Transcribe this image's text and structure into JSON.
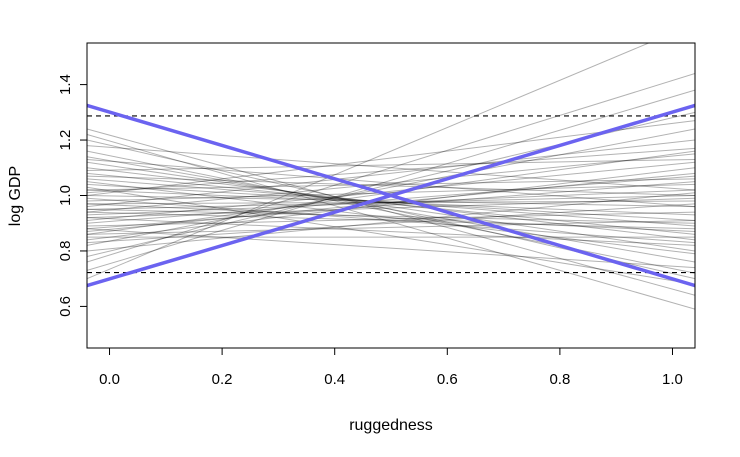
{
  "chart_data": {
    "type": "line",
    "title": "",
    "xlabel": "ruggedness",
    "ylabel": "log GDP",
    "xlim": [
      -0.04,
      1.04
    ],
    "ylim": [
      0.45,
      1.55
    ],
    "xticks": [
      0.0,
      0.2,
      0.4,
      0.6,
      0.8,
      1.0
    ],
    "xtick_labels": [
      "0.0",
      "0.2",
      "0.4",
      "0.6",
      "0.8",
      "1.0"
    ],
    "yticks": [
      0.6,
      0.8,
      1.0,
      1.2,
      1.4
    ],
    "ytick_labels": [
      "0.6",
      "0.8",
      "1.0",
      "1.2",
      "1.4"
    ],
    "grid": false,
    "legend": "none",
    "reference_lines": [
      {
        "y": 1.287,
        "style": "dashed",
        "color": "#000000"
      },
      {
        "y": 0.722,
        "style": "dashed",
        "color": "#000000"
      }
    ],
    "highlight_lines": [
      {
        "x": [
          -0.04,
          1.04
        ],
        "y": [
          1.325,
          0.675
        ],
        "color": "#6b63f0"
      },
      {
        "x": [
          -0.04,
          1.04
        ],
        "y": [
          0.675,
          1.325
        ],
        "color": "#6b63f0"
      }
    ],
    "prior_lines_color": "#000000",
    "prior_lines": [
      {
        "y0": 0.7,
        "y1": 1.62
      },
      {
        "y0": 0.76,
        "y1": 1.44
      },
      {
        "y0": 0.73,
        "y1": 1.38
      },
      {
        "y0": 0.78,
        "y1": 1.3
      },
      {
        "y0": 0.82,
        "y1": 1.24
      },
      {
        "y0": 0.86,
        "y1": 1.16
      },
      {
        "y0": 0.84,
        "y1": 1.1
      },
      {
        "y0": 0.9,
        "y1": 1.07
      },
      {
        "y0": 0.88,
        "y1": 1.05
      },
      {
        "y0": 0.93,
        "y1": 1.02
      },
      {
        "y0": 0.95,
        "y1": 1.0
      },
      {
        "y0": 0.97,
        "y1": 0.98
      },
      {
        "y0": 1.0,
        "y1": 0.96
      },
      {
        "y0": 0.98,
        "y1": 1.04
      },
      {
        "y0": 0.92,
        "y1": 0.99
      },
      {
        "y0": 1.02,
        "y1": 0.93
      },
      {
        "y0": 1.04,
        "y1": 0.91
      },
      {
        "y0": 1.06,
        "y1": 0.89
      },
      {
        "y0": 1.08,
        "y1": 0.86
      },
      {
        "y0": 1.1,
        "y1": 0.84
      },
      {
        "y0": 1.12,
        "y1": 0.8
      },
      {
        "y0": 1.14,
        "y1": 0.76
      },
      {
        "y0": 1.16,
        "y1": 0.72
      },
      {
        "y0": 1.2,
        "y1": 0.7
      },
      {
        "y0": 1.24,
        "y1": 0.64
      },
      {
        "y0": 1.22,
        "y1": 0.59
      },
      {
        "y0": 0.85,
        "y1": 0.85
      },
      {
        "y0": 0.89,
        "y1": 0.94
      },
      {
        "y0": 0.87,
        "y1": 1.08
      },
      {
        "y0": 0.91,
        "y1": 1.12
      },
      {
        "y0": 0.96,
        "y1": 1.2
      },
      {
        "y0": 1.0,
        "y1": 1.27
      },
      {
        "y0": 0.94,
        "y1": 0.88
      },
      {
        "y0": 0.99,
        "y1": 0.83
      },
      {
        "y0": 1.05,
        "y1": 0.79
      },
      {
        "y0": 1.18,
        "y1": 1.02
      },
      {
        "y0": 1.09,
        "y1": 1.13
      },
      {
        "y0": 1.02,
        "y1": 1.06
      },
      {
        "y0": 0.86,
        "y1": 0.91
      },
      {
        "y0": 0.95,
        "y1": 0.9
      },
      {
        "y0": 1.13,
        "y1": 0.96
      },
      {
        "y0": 0.83,
        "y1": 0.97
      },
      {
        "y0": 0.8,
        "y1": 1.01
      },
      {
        "y0": 1.07,
        "y1": 1.0
      },
      {
        "y0": 0.97,
        "y1": 0.87
      },
      {
        "y0": 0.92,
        "y1": 0.82
      },
      {
        "y0": 1.01,
        "y1": 1.17
      },
      {
        "y0": 0.88,
        "y1": 0.74
      },
      {
        "y0": 1.03,
        "y1": 0.68
      },
      {
        "y0": 0.94,
        "y1": 1.15
      }
    ]
  }
}
